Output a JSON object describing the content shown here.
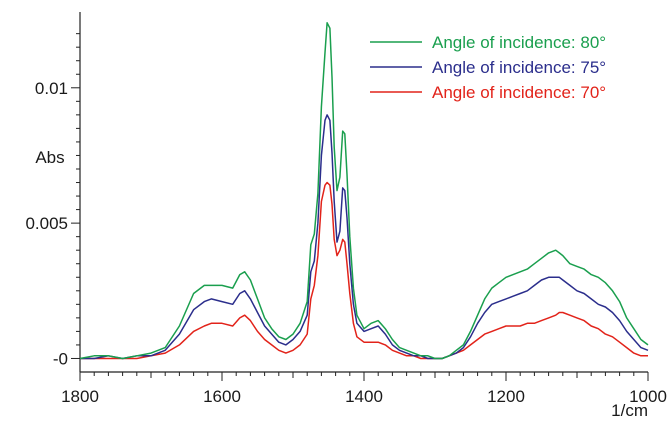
{
  "chart_data": {
    "type": "line",
    "title": "",
    "xlabel": "1/cm",
    "ylabel": "Abs",
    "xlim": [
      1800,
      1000
    ],
    "ylim": [
      -0.0005,
      0.0128
    ],
    "x_reversed": true,
    "x_ticks": [
      1800,
      1600,
      1400,
      1200,
      1000
    ],
    "x_tick_labels": [
      "1800",
      "1600",
      "1400",
      "1200",
      "1000"
    ],
    "y_ticks": [
      0,
      0.005,
      0.01
    ],
    "y_tick_labels": [
      "-0",
      "0.005",
      "0.01"
    ],
    "grid": false,
    "legend_position": "top-right",
    "series": [
      {
        "name": "Angle of incidence: 80°",
        "color": "#1a9f4e",
        "x": [
          1800,
          1780,
          1760,
          1740,
          1720,
          1700,
          1680,
          1660,
          1640,
          1625,
          1615,
          1600,
          1585,
          1575,
          1568,
          1560,
          1550,
          1540,
          1530,
          1520,
          1510,
          1500,
          1490,
          1480,
          1475,
          1470,
          1465,
          1460,
          1455,
          1452,
          1448,
          1445,
          1442,
          1438,
          1434,
          1430,
          1427,
          1424,
          1420,
          1415,
          1410,
          1400,
          1390,
          1380,
          1370,
          1360,
          1350,
          1340,
          1330,
          1320,
          1310,
          1300,
          1290,
          1280,
          1270,
          1260,
          1250,
          1240,
          1230,
          1220,
          1210,
          1200,
          1190,
          1180,
          1170,
          1160,
          1150,
          1140,
          1130,
          1125,
          1120,
          1110,
          1100,
          1090,
          1080,
          1070,
          1060,
          1050,
          1040,
          1030,
          1020,
          1010,
          1000
        ],
        "y": [
          0.0,
          0.0001,
          0.0001,
          0.0,
          0.0001,
          0.0002,
          0.0004,
          0.0012,
          0.0024,
          0.0027,
          0.0027,
          0.0027,
          0.0026,
          0.0031,
          0.0032,
          0.0029,
          0.0022,
          0.0015,
          0.0011,
          0.0008,
          0.0007,
          0.0009,
          0.0013,
          0.0021,
          0.0042,
          0.0046,
          0.0061,
          0.0093,
          0.0113,
          0.0124,
          0.0122,
          0.0104,
          0.0078,
          0.0062,
          0.0067,
          0.0084,
          0.0083,
          0.0068,
          0.0045,
          0.0026,
          0.0016,
          0.0011,
          0.0013,
          0.0014,
          0.0011,
          0.0007,
          0.0004,
          0.0003,
          0.0002,
          0.0001,
          0.0001,
          0.0,
          0.0,
          0.0001,
          0.0003,
          0.0005,
          0.001,
          0.0016,
          0.0022,
          0.0026,
          0.0028,
          0.003,
          0.0031,
          0.0032,
          0.0033,
          0.0035,
          0.0037,
          0.0039,
          0.004,
          0.0039,
          0.0038,
          0.0035,
          0.0034,
          0.0033,
          0.0031,
          0.003,
          0.0028,
          0.0025,
          0.0021,
          0.0015,
          0.0011,
          0.0007,
          0.0005
        ]
      },
      {
        "name": "Angle of incidence: 75°",
        "color": "#2b2e8c",
        "x": [
          1800,
          1780,
          1760,
          1740,
          1720,
          1700,
          1680,
          1660,
          1640,
          1625,
          1615,
          1600,
          1585,
          1575,
          1568,
          1560,
          1550,
          1540,
          1530,
          1520,
          1510,
          1500,
          1490,
          1480,
          1475,
          1470,
          1465,
          1460,
          1455,
          1452,
          1448,
          1445,
          1442,
          1438,
          1434,
          1430,
          1427,
          1424,
          1420,
          1415,
          1410,
          1400,
          1390,
          1380,
          1370,
          1360,
          1350,
          1340,
          1330,
          1320,
          1310,
          1300,
          1290,
          1280,
          1270,
          1260,
          1250,
          1240,
          1230,
          1220,
          1210,
          1200,
          1190,
          1180,
          1170,
          1160,
          1150,
          1140,
          1130,
          1125,
          1120,
          1110,
          1100,
          1090,
          1080,
          1070,
          1060,
          1050,
          1040,
          1030,
          1020,
          1010,
          1000
        ],
        "y": [
          0.0,
          0.0,
          0.0001,
          0.0,
          0.0001,
          0.0001,
          0.0003,
          0.0009,
          0.0018,
          0.0021,
          0.0022,
          0.0021,
          0.002,
          0.0024,
          0.0025,
          0.0022,
          0.0017,
          0.0012,
          0.0009,
          0.0006,
          0.0005,
          0.0007,
          0.001,
          0.0016,
          0.0032,
          0.0036,
          0.005,
          0.0075,
          0.0088,
          0.009,
          0.0088,
          0.0076,
          0.0058,
          0.0043,
          0.0047,
          0.0063,
          0.0062,
          0.0052,
          0.0035,
          0.002,
          0.0013,
          0.001,
          0.0011,
          0.0012,
          0.0009,
          0.0005,
          0.0003,
          0.0002,
          0.0001,
          0.0001,
          0.0,
          0.0,
          0.0,
          0.0001,
          0.0002,
          0.0004,
          0.0008,
          0.0013,
          0.0017,
          0.002,
          0.0021,
          0.0022,
          0.0023,
          0.0024,
          0.0025,
          0.0027,
          0.0029,
          0.003,
          0.003,
          0.003,
          0.0029,
          0.0027,
          0.0025,
          0.0024,
          0.0022,
          0.002,
          0.0019,
          0.0017,
          0.0014,
          0.001,
          0.0007,
          0.0004,
          0.0003
        ]
      },
      {
        "name": "Angle of incidence: 70°",
        "color": "#e2231a",
        "x": [
          1800,
          1780,
          1760,
          1740,
          1720,
          1700,
          1680,
          1660,
          1640,
          1625,
          1615,
          1600,
          1585,
          1575,
          1568,
          1560,
          1550,
          1540,
          1530,
          1520,
          1510,
          1500,
          1490,
          1480,
          1475,
          1470,
          1465,
          1460,
          1455,
          1452,
          1448,
          1445,
          1442,
          1438,
          1434,
          1430,
          1427,
          1424,
          1420,
          1415,
          1410,
          1400,
          1390,
          1380,
          1370,
          1360,
          1350,
          1340,
          1330,
          1320,
          1310,
          1300,
          1290,
          1280,
          1270,
          1260,
          1250,
          1240,
          1230,
          1220,
          1210,
          1200,
          1190,
          1180,
          1170,
          1160,
          1150,
          1140,
          1130,
          1125,
          1120,
          1110,
          1100,
          1090,
          1080,
          1070,
          1060,
          1050,
          1040,
          1030,
          1020,
          1010,
          1000
        ],
        "y": [
          0.0,
          0.0,
          0.0,
          0.0,
          0.0,
          0.0001,
          0.0002,
          0.0005,
          0.001,
          0.0012,
          0.0013,
          0.0013,
          0.0012,
          0.0015,
          0.0016,
          0.0014,
          0.001,
          0.0007,
          0.0005,
          0.0003,
          0.0002,
          0.0003,
          0.0005,
          0.0009,
          0.0022,
          0.0027,
          0.0038,
          0.0058,
          0.0064,
          0.0065,
          0.0064,
          0.0057,
          0.0044,
          0.0038,
          0.004,
          0.0044,
          0.0043,
          0.0035,
          0.0024,
          0.0013,
          0.0008,
          0.0006,
          0.0006,
          0.0006,
          0.0005,
          0.0003,
          0.0002,
          0.0001,
          0.0001,
          0.0,
          0.0,
          0.0,
          0.0,
          0.0001,
          0.0002,
          0.0003,
          0.0005,
          0.0007,
          0.0009,
          0.001,
          0.0011,
          0.0012,
          0.0012,
          0.0012,
          0.0013,
          0.0013,
          0.0014,
          0.0015,
          0.0016,
          0.0017,
          0.0017,
          0.0016,
          0.0015,
          0.0014,
          0.0012,
          0.0011,
          0.0009,
          0.0008,
          0.0006,
          0.0004,
          0.0002,
          0.0001,
          0.0001
        ]
      }
    ]
  }
}
